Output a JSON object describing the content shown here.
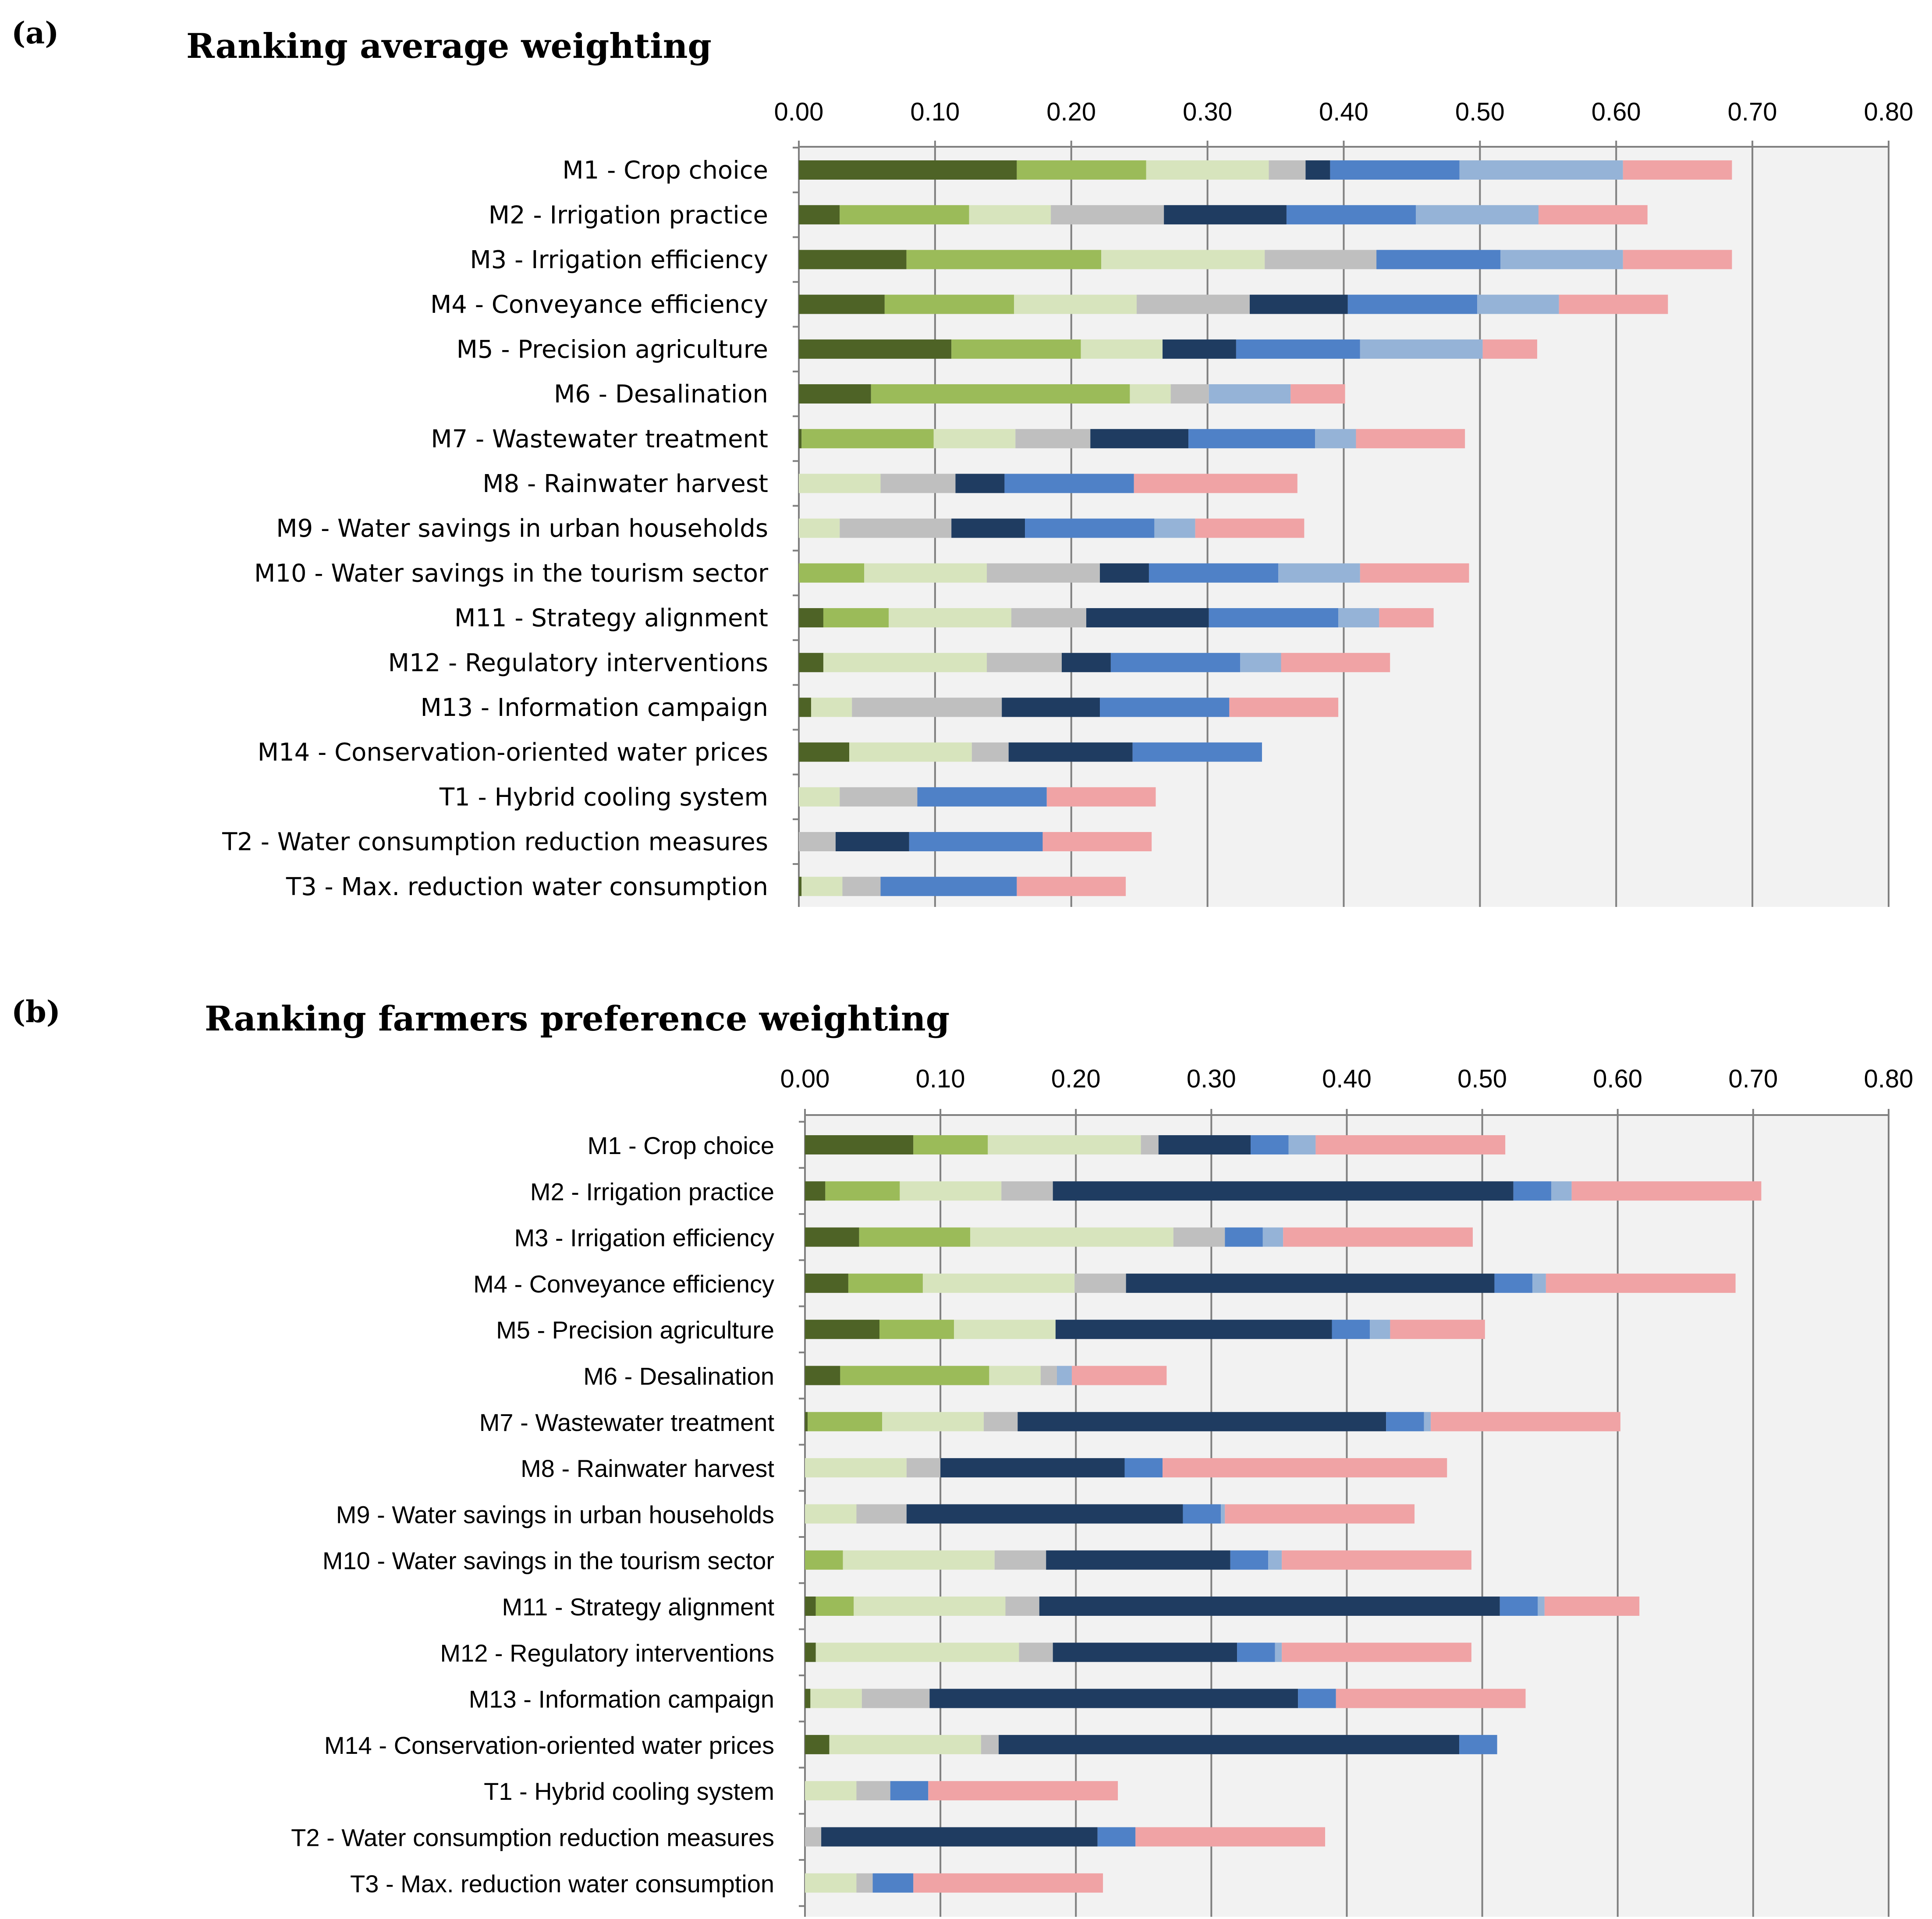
{
  "panels": [
    {
      "letter": "(a)",
      "title": "Ranking average weighting"
    },
    {
      "letter": "(b)",
      "title": "Ranking farmers preference weighting"
    }
  ],
  "series_colors": [
    "#4e6326",
    "#9bbb59",
    "#d7e4bd",
    "#bfbfbf",
    "#1f3c61",
    "#4f81c7",
    "#95b3d7",
    "#f0a3a5"
  ],
  "chart_data": [
    {
      "type": "bar",
      "orientation": "horizontal",
      "stacked": true,
      "title": "Ranking average weighting",
      "xlim": [
        0,
        0.8
      ],
      "xticks": [
        "0.00",
        "0.10",
        "0.20",
        "0.30",
        "0.40",
        "0.50",
        "0.60",
        "0.70",
        "0.80"
      ],
      "categories": [
        "M1 - Crop choice",
        "M2 - Irrigation practice",
        "M3 - Irrigation efficiency",
        "M4 - Conveyance efficiency",
        "M5 - Precision agriculture",
        "M6 - Desalination",
        "M7 - Wastewater treatment",
        "M8 - Rainwater harvest",
        "M9 - Water savings in urban households",
        "M10 - Water savings in the tourism sector",
        "M11 - Strategy alignment",
        "M12 - Regulatory interventions",
        "M13 - Information campaign",
        "M14 -  Conservation-oriented water prices",
        "T1 - Hybrid cooling system",
        "T2 - Water consumption reduction measures",
        "T3 - Max. reduction water consumption"
      ],
      "segments": [
        [
          0.16,
          0.095,
          0.09,
          0.027,
          0.018,
          0.095,
          0.12,
          0.08
        ],
        [
          0.03,
          0.095,
          0.06,
          0.083,
          0.09,
          0.095,
          0.09,
          0.08
        ],
        [
          0.079,
          0.143,
          0.12,
          0.082,
          0.0,
          0.091,
          0.09,
          0.08
        ],
        [
          0.063,
          0.095,
          0.09,
          0.083,
          0.072,
          0.095,
          0.06,
          0.08
        ],
        [
          0.112,
          0.095,
          0.06,
          0.0,
          0.054,
          0.091,
          0.09,
          0.04
        ],
        [
          0.053,
          0.19,
          0.03,
          0.028,
          0.0,
          0.0,
          0.06,
          0.04
        ],
        [
          0.002,
          0.097,
          0.06,
          0.055,
          0.072,
          0.093,
          0.03,
          0.08
        ],
        [
          0.0,
          0.0,
          0.06,
          0.055,
          0.036,
          0.095,
          0.0,
          0.12
        ],
        [
          0.0,
          0.0,
          0.03,
          0.082,
          0.054,
          0.095,
          0.03,
          0.08
        ],
        [
          0.0,
          0.048,
          0.09,
          0.083,
          0.036,
          0.095,
          0.06,
          0.08
        ],
        [
          0.018,
          0.048,
          0.09,
          0.055,
          0.09,
          0.095,
          0.03,
          0.04
        ],
        [
          0.018,
          0.0,
          0.12,
          0.055,
          0.036,
          0.095,
          0.03,
          0.08
        ],
        [
          0.009,
          0.0,
          0.03,
          0.11,
          0.072,
          0.095,
          0.0,
          0.08
        ],
        [
          0.037,
          0.0,
          0.09,
          0.027,
          0.091,
          0.095,
          0.0,
          0.0
        ],
        [
          0.0,
          0.0,
          0.03,
          0.057,
          0.0,
          0.095,
          0.0,
          0.08
        ],
        [
          0.0,
          0.0,
          0.0,
          0.027,
          0.054,
          0.098,
          0.0,
          0.08
        ],
        [
          0.002,
          0.0,
          0.03,
          0.028,
          0.0,
          0.1,
          0.0,
          0.08
        ]
      ]
    },
    {
      "type": "bar",
      "orientation": "horizontal",
      "stacked": true,
      "title": "Ranking farmers preference weighting",
      "xlim": [
        0,
        0.8
      ],
      "xticks": [
        "0.00",
        "0.10",
        "0.20",
        "0.30",
        "0.40",
        "0.50",
        "0.60",
        "0.70",
        "0.80"
      ],
      "categories": [
        "M1 - Crop choice",
        "M2 - Irrigation practice",
        "M3 - Irrigation efficiency",
        "M4 - Conveyance efficiency",
        "M5 - Precision agriculture",
        "M6 - Desalination",
        "M7 - Wastewater treatment",
        "M8 - Rainwater harvest",
        "M9 - Water savings in urban households",
        "M10 - Water savings in the tourism sector",
        "M11 - Strategy alignment",
        "M12 - Regulatory interventions",
        "M13 - Information campaign",
        "M14 -  Conservation-oriented water prices",
        "T1 - Hybrid cooling system",
        "T2 - Water consumption reduction measures",
        "T3 - Max. reduction water consumption"
      ],
      "segments": [
        [
          0.08,
          0.055,
          0.113,
          0.013,
          0.068,
          0.028,
          0.02,
          0.14
        ],
        [
          0.015,
          0.055,
          0.075,
          0.038,
          0.34,
          0.028,
          0.015,
          0.14
        ],
        [
          0.04,
          0.082,
          0.15,
          0.038,
          0.0,
          0.028,
          0.015,
          0.14
        ],
        [
          0.032,
          0.055,
          0.112,
          0.038,
          0.272,
          0.028,
          0.01,
          0.14
        ],
        [
          0.055,
          0.055,
          0.075,
          0.0,
          0.204,
          0.028,
          0.015,
          0.07
        ],
        [
          0.026,
          0.11,
          0.038,
          0.012,
          0.0,
          0.0,
          0.011,
          0.07
        ],
        [
          0.002,
          0.055,
          0.075,
          0.025,
          0.272,
          0.028,
          0.005,
          0.14
        ],
        [
          0.0,
          0.0,
          0.075,
          0.025,
          0.136,
          0.028,
          0.0,
          0.21
        ],
        [
          0.0,
          0.0,
          0.038,
          0.037,
          0.204,
          0.028,
          0.003,
          0.14
        ],
        [
          0.0,
          0.028,
          0.112,
          0.038,
          0.136,
          0.028,
          0.01,
          0.14
        ],
        [
          0.008,
          0.028,
          0.112,
          0.025,
          0.34,
          0.028,
          0.005,
          0.07
        ],
        [
          0.008,
          0.0,
          0.15,
          0.025,
          0.136,
          0.028,
          0.005,
          0.14
        ],
        [
          0.004,
          0.0,
          0.038,
          0.05,
          0.272,
          0.028,
          0.0,
          0.14
        ],
        [
          0.018,
          0.0,
          0.112,
          0.013,
          0.34,
          0.028,
          0.0,
          0.0
        ],
        [
          0.0,
          0.0,
          0.038,
          0.025,
          0.0,
          0.028,
          0.0,
          0.14
        ],
        [
          0.0,
          0.0,
          0.0,
          0.012,
          0.204,
          0.028,
          0.0,
          0.14
        ],
        [
          0.0,
          0.0,
          0.038,
          0.012,
          0.0,
          0.03,
          0.0,
          0.14
        ]
      ]
    }
  ]
}
